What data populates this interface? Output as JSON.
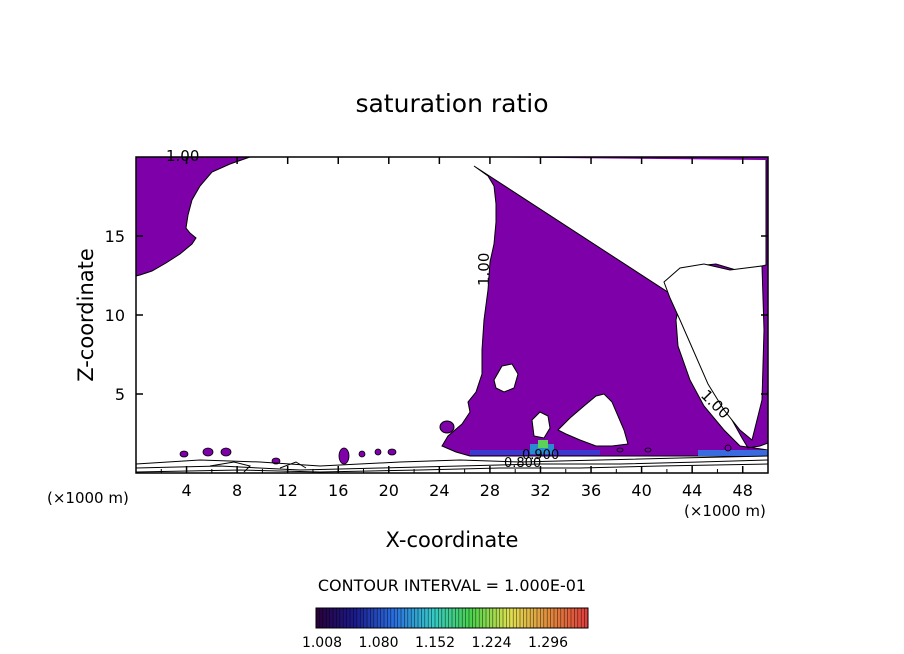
{
  "chart_data": {
    "type": "contour",
    "title": "saturation ratio",
    "xlabel": "X-coordinate",
    "ylabel": "Z-coordinate",
    "x_unit": "(×1000 m)",
    "x_unit_right": "(×1000 m)",
    "xlim": [
      0,
      50
    ],
    "ylim": [
      0,
      20
    ],
    "x_ticks": [
      4,
      8,
      12,
      16,
      20,
      24,
      28,
      32,
      36,
      40,
      44,
      48
    ],
    "y_ticks": [
      5,
      10,
      15
    ],
    "contour_interval_text": "CONTOUR INTERVAL = 1.000E-01",
    "contour_labels": [
      "1.00",
      "1.00",
      "1.00",
      "0.900",
      "0.800"
    ],
    "colorbar": {
      "ticks": [
        "1.008",
        "1.080",
        "1.152",
        "1.224",
        "1.296"
      ],
      "colors": [
        "#2a003a",
        "#1a1a8c",
        "#2a6ee0",
        "#35c8c8",
        "#4ad24a",
        "#e0e050",
        "#e08a3c",
        "#e03c3c"
      ]
    },
    "fill_color_saturated": "#7d00a8",
    "description_regions": "Shaded where saturation ratio >= 1.0"
  }
}
